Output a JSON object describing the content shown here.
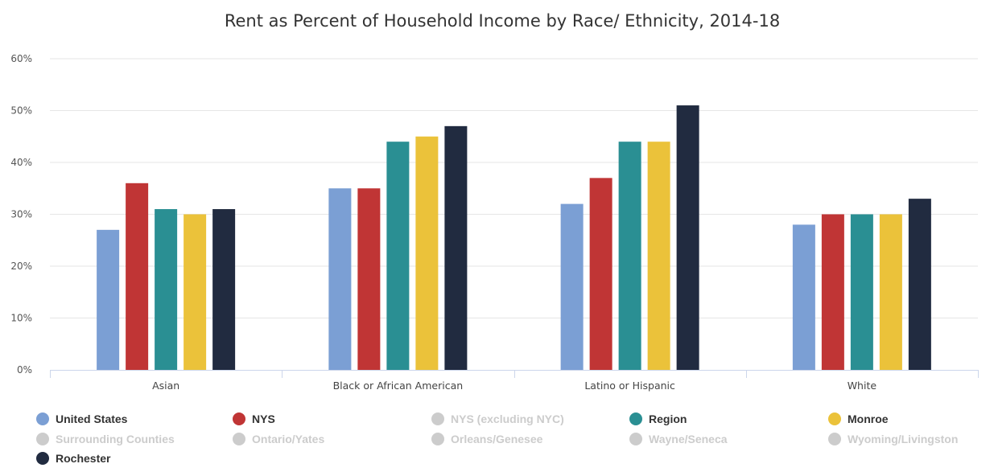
{
  "chart_data": {
    "type": "bar",
    "title": "Rent as Percent of Household Income by Race/ Ethnicity, 2014-18",
    "xlabel": "",
    "ylabel": "",
    "ylim": [
      0,
      60
    ],
    "yticks": [
      0,
      10,
      20,
      30,
      40,
      50,
      60
    ],
    "ytick_labels": [
      "0%",
      "10%",
      "20%",
      "30%",
      "40%",
      "50%",
      "60%"
    ],
    "grid": true,
    "legend_position": "bottom",
    "categories": [
      "Asian",
      "Black or African American",
      "Latino or Hispanic",
      "White"
    ],
    "series": [
      {
        "name": "United States",
        "color": "#7b9fd4",
        "values": [
          27,
          35,
          32,
          28
        ]
      },
      {
        "name": "NYS",
        "color": "#c03535",
        "values": [
          36,
          35,
          37,
          30
        ]
      },
      {
        "name": "Region",
        "color": "#2a8f93",
        "values": [
          31,
          44,
          44,
          30
        ]
      },
      {
        "name": "Monroe",
        "color": "#ebc23a",
        "values": [
          30,
          45,
          44,
          30
        ]
      },
      {
        "name": "Rochester",
        "color": "#212b40",
        "values": [
          31,
          47,
          51,
          33
        ]
      }
    ],
    "legend": [
      {
        "name": "United States",
        "color": "#7b9fd4",
        "active": true
      },
      {
        "name": "NYS",
        "color": "#c03535",
        "active": true
      },
      {
        "name": "NYS (excluding NYC)",
        "color": "#cccccc",
        "active": false
      },
      {
        "name": "Region",
        "color": "#2a8f93",
        "active": true
      },
      {
        "name": "Monroe",
        "color": "#ebc23a",
        "active": true
      },
      {
        "name": "Surrounding Counties",
        "color": "#cccccc",
        "active": false
      },
      {
        "name": "Ontario/Yates",
        "color": "#cccccc",
        "active": false
      },
      {
        "name": "Orleans/Genesee",
        "color": "#cccccc",
        "active": false
      },
      {
        "name": "Wayne/Seneca",
        "color": "#cccccc",
        "active": false
      },
      {
        "name": "Wyoming/Livingston",
        "color": "#cccccc",
        "active": false
      },
      {
        "name": "Rochester",
        "color": "#212b40",
        "active": true
      }
    ]
  },
  "colors": {
    "grid": "#e6e6e6",
    "axis": "#ccd6eb",
    "legend_active_text": "#333333",
    "legend_inactive_text": "#cccccc"
  }
}
